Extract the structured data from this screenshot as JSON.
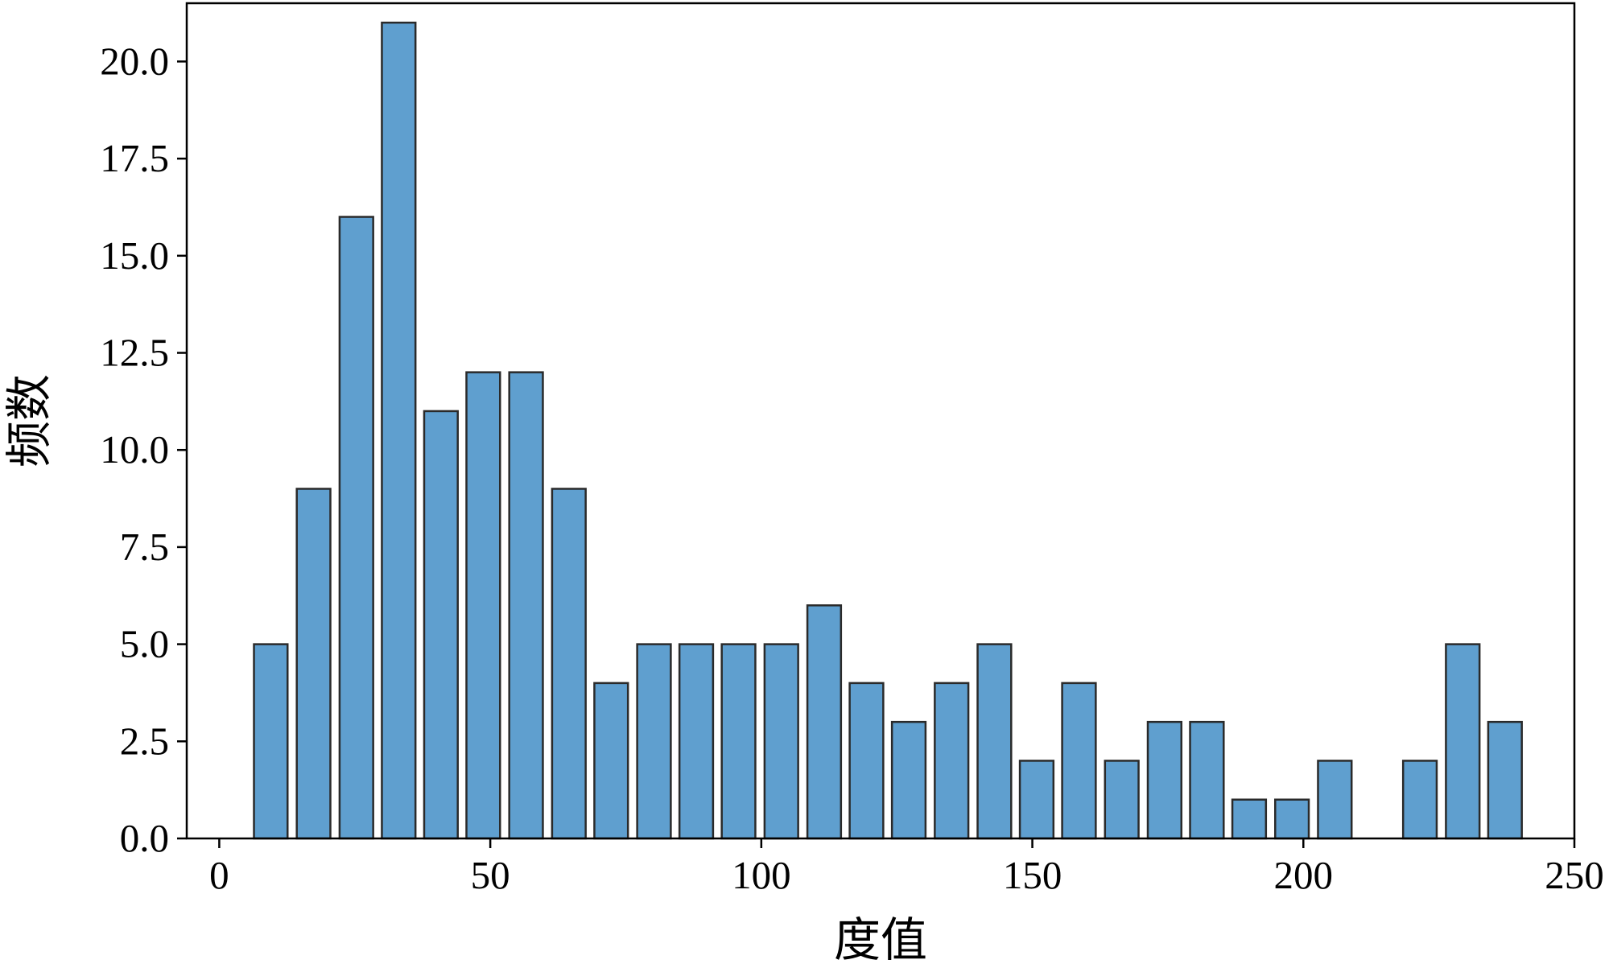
{
  "chart_data": {
    "type": "bar",
    "title": "",
    "xlabel": "度值",
    "ylabel": "频数",
    "xlim": [
      -6,
      250
    ],
    "ylim": [
      0,
      21.5
    ],
    "x_ticks": [
      0,
      50,
      100,
      150,
      200,
      250
    ],
    "x_tick_labels": [
      "0",
      "50",
      "100",
      "150",
      "200",
      "250"
    ],
    "y_ticks": [
      0,
      2.5,
      5,
      7.5,
      10,
      12.5,
      15,
      17.5,
      20
    ],
    "y_tick_labels": [
      "0.0",
      "2.5",
      "5.0",
      "7.5",
      "10.0",
      "12.5",
      "15.0",
      "17.5",
      "20.0"
    ],
    "bar_width": 6.2,
    "x": [
      9.5,
      17.4,
      25.3,
      33.1,
      40.9,
      48.7,
      56.6,
      64.5,
      72.3,
      80.2,
      88.0,
      95.8,
      103.7,
      111.6,
      119.4,
      127.2,
      135.1,
      143.0,
      150.8,
      158.6,
      166.5,
      174.4,
      182.2,
      190.0,
      197.9,
      205.8,
      221.5,
      229.4,
      237.2
    ],
    "values": [
      5,
      9,
      16,
      21,
      11,
      12,
      12,
      9,
      4,
      5,
      5,
      5,
      5,
      6,
      4,
      3,
      4,
      5,
      2,
      4,
      2,
      3,
      3,
      1,
      1,
      2,
      2,
      5,
      3
    ],
    "grid": false,
    "legend": false,
    "colors": {
      "bar_fill": "#5f9fcf",
      "bar_edge": "#2a2a2a",
      "axis": "#000000"
    }
  }
}
